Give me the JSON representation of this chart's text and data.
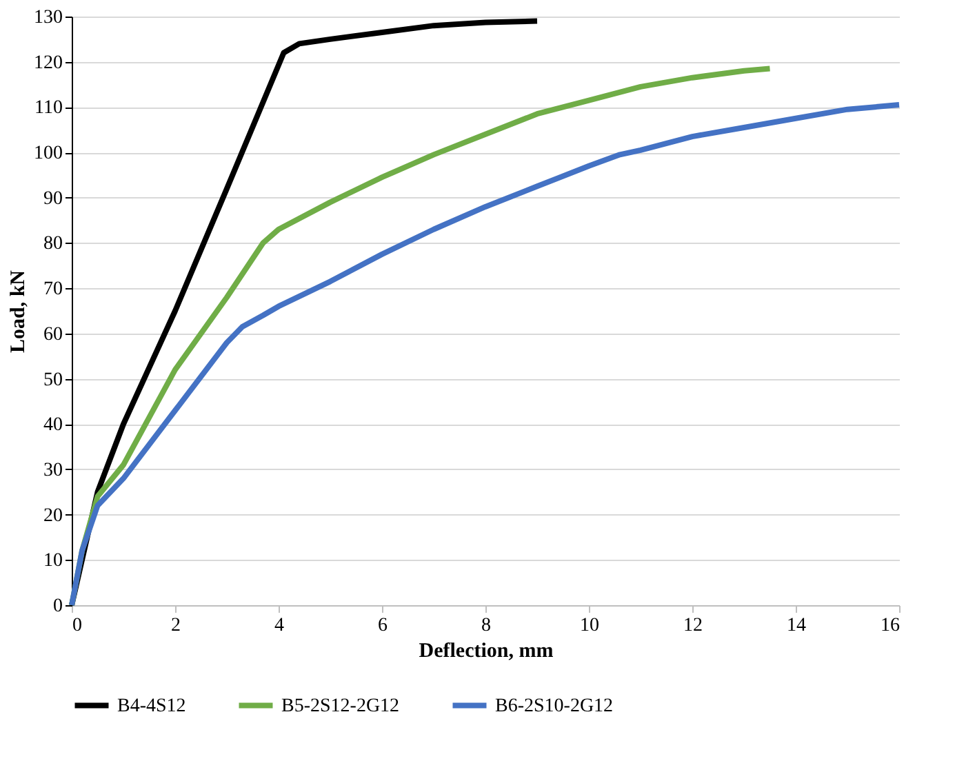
{
  "chart_data": {
    "type": "line",
    "xlabel": "Deflection, mm",
    "ylabel": "Load, kN",
    "xlim": [
      0,
      16
    ],
    "xticks": [
      0,
      2,
      4,
      6,
      8,
      10,
      12,
      14,
      16
    ],
    "ylim": [
      0,
      130
    ],
    "yticks": [
      0,
      10,
      20,
      30,
      40,
      50,
      60,
      70,
      80,
      90,
      100,
      110,
      120,
      130
    ],
    "grid": "y",
    "legend": "bottom",
    "marker": "none",
    "line_style": "solid",
    "series": [
      {
        "name": "B4-4S12",
        "color": "#000000",
        "x": [
          0,
          0.3,
          0.5,
          1,
          2,
          3,
          4.1,
          4.4,
          5,
          6,
          7,
          8,
          9
        ],
        "values": [
          0,
          15,
          25,
          40,
          65,
          92,
          122,
          124,
          125,
          126.5,
          128,
          128.7,
          129
        ]
      },
      {
        "name": "B5-2S12-2G12",
        "color": "#70ad47",
        "x": [
          0,
          0.2,
          0.5,
          1,
          2,
          3,
          3.7,
          4,
          5,
          6,
          7,
          8,
          9,
          10,
          11,
          12,
          13,
          13.5
        ],
        "values": [
          0,
          12,
          24,
          31,
          52,
          68,
          80,
          83,
          89,
          94.5,
          99.5,
          104,
          108.5,
          111.5,
          114.5,
          116.5,
          118,
          118.5
        ]
      },
      {
        "name": "B6-2S10-2G12",
        "color": "#4472c4",
        "x": [
          0,
          0.2,
          0.5,
          1,
          2,
          3,
          3.3,
          3.7,
          4,
          5,
          6,
          7,
          8,
          9,
          10,
          10.6,
          11,
          12,
          13,
          14,
          15,
          16
        ],
        "values": [
          0,
          12,
          22,
          28,
          43,
          58,
          61.5,
          64,
          66,
          71.5,
          77.5,
          83,
          88,
          92.5,
          97,
          99.5,
          100.5,
          103.5,
          105.5,
          107.5,
          109.5,
          110.5
        ]
      }
    ]
  }
}
